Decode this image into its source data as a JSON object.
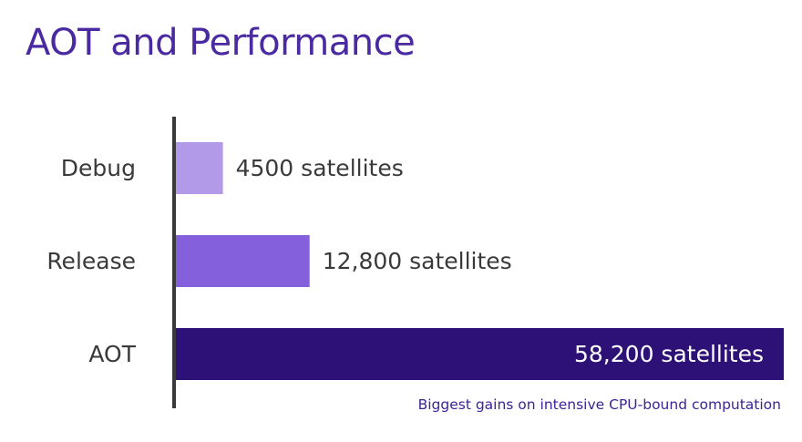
{
  "slide": {
    "title": "AOT and Performance",
    "footnote": "Biggest gains on intensive CPU-bound computation"
  },
  "chart_data": {
    "type": "bar",
    "orientation": "horizontal",
    "categories": [
      "Debug",
      "Release",
      "AOT"
    ],
    "values": [
      4500,
      12800,
      58200
    ],
    "value_labels": [
      "4500 satellites",
      "12,800 satellites",
      "58,200 satellites"
    ],
    "unit": "satellites",
    "title": "",
    "xlabel": "",
    "ylabel": "",
    "xlim": [
      0,
      58200
    ],
    "grid": false,
    "legend": "none",
    "colors": [
      "#b29ae8",
      "#8560dc",
      "#2e1177"
    ],
    "axis_color": "#3a3a3a"
  }
}
